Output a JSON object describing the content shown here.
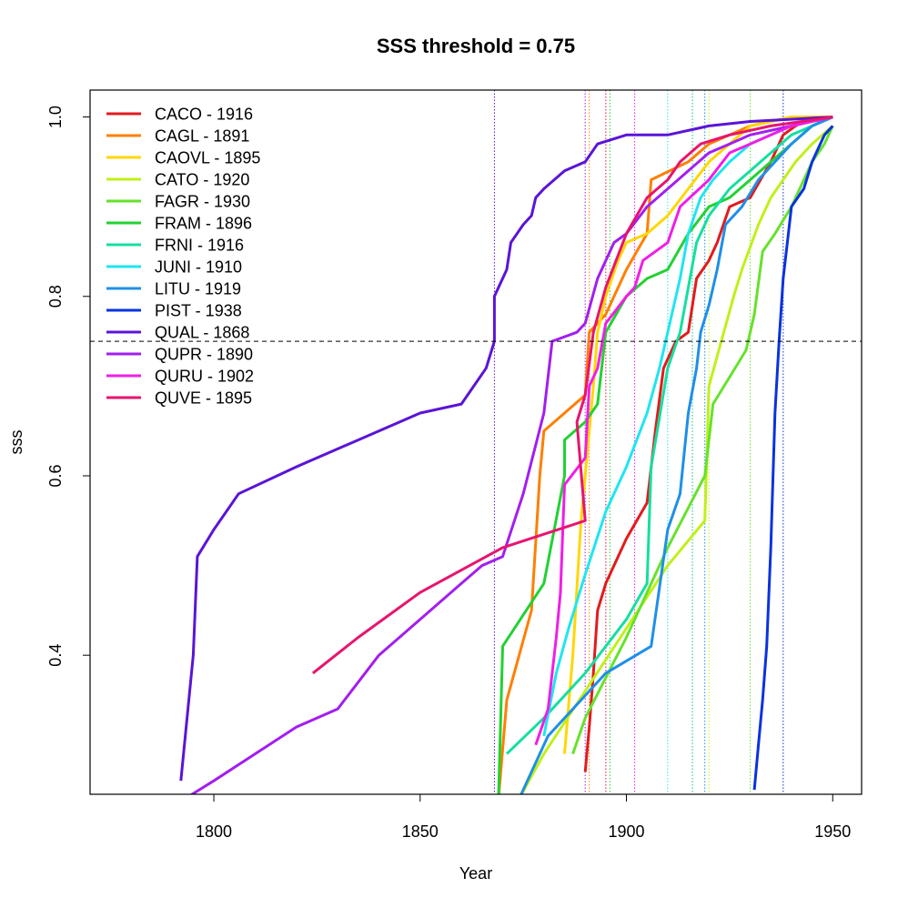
{
  "chart_data": {
    "type": "line",
    "title": "SSS threshold = 0.75",
    "xlabel": "Year",
    "ylabel": "sss",
    "xlim": [
      1770,
      1957
    ],
    "ylim": [
      0.245,
      1.03
    ],
    "xticks": [
      1800,
      1850,
      1900,
      1950
    ],
    "yticks": [
      0.4,
      0.6,
      0.8,
      1.0
    ],
    "ytick_labels": [
      "0.4",
      "0.6",
      "0.8",
      "1.0"
    ],
    "threshold": 0.75,
    "legend_position": "top-left",
    "series": [
      {
        "name": "CACO - 1916",
        "color": "#e31a1c",
        "cutoff_year": 1916,
        "points": [
          [
            1890,
            0.27
          ],
          [
            1891,
            0.32
          ],
          [
            1892,
            0.38
          ],
          [
            1893,
            0.45
          ],
          [
            1895,
            0.48
          ],
          [
            1900,
            0.53
          ],
          [
            1905,
            0.57
          ],
          [
            1907,
            0.65
          ],
          [
            1909,
            0.72
          ],
          [
            1912,
            0.75
          ],
          [
            1915,
            0.76
          ],
          [
            1917,
            0.82
          ],
          [
            1920,
            0.84
          ],
          [
            1922,
            0.86
          ],
          [
            1925,
            0.9
          ],
          [
            1930,
            0.91
          ],
          [
            1935,
            0.95
          ],
          [
            1938,
            0.98
          ],
          [
            1941,
            0.99
          ],
          [
            1945,
            1.0
          ],
          [
            1950,
            1.0
          ]
        ]
      },
      {
        "name": "CAGL - 1891",
        "color": "#ff7f00",
        "cutoff_year": 1891,
        "points": [
          [
            1869,
            0.24
          ],
          [
            1871,
            0.35
          ],
          [
            1874,
            0.4
          ],
          [
            1877,
            0.45
          ],
          [
            1879,
            0.6
          ],
          [
            1880,
            0.65
          ],
          [
            1890,
            0.69
          ],
          [
            1891,
            0.76
          ],
          [
            1895,
            0.78
          ],
          [
            1900,
            0.83
          ],
          [
            1905,
            0.87
          ],
          [
            1906,
            0.93
          ],
          [
            1915,
            0.95
          ],
          [
            1920,
            0.97
          ],
          [
            1930,
            0.99
          ],
          [
            1940,
            1.0
          ],
          [
            1950,
            1.0
          ]
        ]
      },
      {
        "name": "CAOVL - 1895",
        "color": "#ffd700",
        "cutoff_year": 1895,
        "points": [
          [
            1885,
            0.29
          ],
          [
            1887,
            0.4
          ],
          [
            1889,
            0.55
          ],
          [
            1890,
            0.6
          ],
          [
            1891,
            0.65
          ],
          [
            1892,
            0.7
          ],
          [
            1893,
            0.76
          ],
          [
            1895,
            0.8
          ],
          [
            1898,
            0.84
          ],
          [
            1900,
            0.86
          ],
          [
            1905,
            0.87
          ],
          [
            1910,
            0.89
          ],
          [
            1915,
            0.92
          ],
          [
            1920,
            0.95
          ],
          [
            1925,
            0.97
          ],
          [
            1930,
            0.99
          ],
          [
            1940,
            1.0
          ],
          [
            1950,
            1.0
          ]
        ]
      },
      {
        "name": "CATO - 1920",
        "color": "#c0f018",
        "cutoff_year": 1920,
        "points": [
          [
            1874,
            0.24
          ],
          [
            1880,
            0.29
          ],
          [
            1890,
            0.36
          ],
          [
            1900,
            0.43
          ],
          [
            1910,
            0.5
          ],
          [
            1919,
            0.55
          ],
          [
            1920,
            0.7
          ],
          [
            1923,
            0.75
          ],
          [
            1926,
            0.8
          ],
          [
            1928,
            0.83
          ],
          [
            1932,
            0.88
          ],
          [
            1935,
            0.91
          ],
          [
            1938,
            0.93
          ],
          [
            1941,
            0.95
          ],
          [
            1945,
            0.97
          ],
          [
            1950,
            0.99
          ]
        ]
      },
      {
        "name": "FAGR - 1930",
        "color": "#66e22b",
        "cutoff_year": 1930,
        "points": [
          [
            1887,
            0.29
          ],
          [
            1890,
            0.33
          ],
          [
            1900,
            0.42
          ],
          [
            1910,
            0.52
          ],
          [
            1919,
            0.6
          ],
          [
            1921,
            0.68
          ],
          [
            1925,
            0.71
          ],
          [
            1929,
            0.74
          ],
          [
            1931,
            0.78
          ],
          [
            1933,
            0.85
          ],
          [
            1936,
            0.87
          ],
          [
            1940,
            0.9
          ],
          [
            1945,
            0.95
          ],
          [
            1948,
            0.97
          ],
          [
            1950,
            0.99
          ]
        ]
      },
      {
        "name": "FRAM - 1896",
        "color": "#22d133",
        "cutoff_year": 1896,
        "points": [
          [
            1869,
            0.24
          ],
          [
            1870,
            0.41
          ],
          [
            1880,
            0.48
          ],
          [
            1885,
            0.6
          ],
          [
            1885,
            0.64
          ],
          [
            1890,
            0.66
          ],
          [
            1893,
            0.68
          ],
          [
            1895,
            0.76
          ],
          [
            1900,
            0.8
          ],
          [
            1905,
            0.82
          ],
          [
            1910,
            0.83
          ],
          [
            1915,
            0.87
          ],
          [
            1920,
            0.9
          ],
          [
            1925,
            0.91
          ],
          [
            1930,
            0.93
          ],
          [
            1935,
            0.95
          ],
          [
            1940,
            0.97
          ],
          [
            1945,
            0.99
          ],
          [
            1950,
            1.0
          ]
        ]
      },
      {
        "name": "FRNI - 1916",
        "color": "#14dfa0",
        "cutoff_year": 1916,
        "points": [
          [
            1871,
            0.29
          ],
          [
            1880,
            0.33
          ],
          [
            1890,
            0.38
          ],
          [
            1900,
            0.44
          ],
          [
            1905,
            0.48
          ],
          [
            1906,
            0.61
          ],
          [
            1910,
            0.72
          ],
          [
            1913,
            0.76
          ],
          [
            1917,
            0.86
          ],
          [
            1920,
            0.89
          ],
          [
            1925,
            0.92
          ],
          [
            1930,
            0.94
          ],
          [
            1935,
            0.96
          ],
          [
            1940,
            0.98
          ],
          [
            1950,
            1.0
          ]
        ]
      },
      {
        "name": "JUNI - 1910",
        "color": "#1ee6f0",
        "cutoff_year": 1910,
        "points": [
          [
            1880,
            0.31
          ],
          [
            1883,
            0.38
          ],
          [
            1886,
            0.43
          ],
          [
            1890,
            0.49
          ],
          [
            1895,
            0.56
          ],
          [
            1900,
            0.61
          ],
          [
            1905,
            0.67
          ],
          [
            1908,
            0.72
          ],
          [
            1910,
            0.76
          ],
          [
            1913,
            0.82
          ],
          [
            1915,
            0.87
          ],
          [
            1918,
            0.91
          ],
          [
            1921,
            0.93
          ],
          [
            1925,
            0.95
          ],
          [
            1930,
            0.97
          ],
          [
            1935,
            0.98
          ],
          [
            1940,
            0.99
          ],
          [
            1950,
            1.0
          ]
        ]
      },
      {
        "name": "LITU - 1919",
        "color": "#1e8fe8",
        "cutoff_year": 1919,
        "points": [
          [
            1874,
            0.24
          ],
          [
            1880,
            0.3
          ],
          [
            1881,
            0.31
          ],
          [
            1887,
            0.34
          ],
          [
            1895,
            0.38
          ],
          [
            1906,
            0.41
          ],
          [
            1910,
            0.54
          ],
          [
            1913,
            0.58
          ],
          [
            1915,
            0.67
          ],
          [
            1917,
            0.72
          ],
          [
            1918,
            0.76
          ],
          [
            1920,
            0.79
          ],
          [
            1922,
            0.83
          ],
          [
            1924,
            0.88
          ],
          [
            1928,
            0.9
          ],
          [
            1932,
            0.93
          ],
          [
            1936,
            0.95
          ],
          [
            1940,
            0.97
          ],
          [
            1945,
            0.99
          ],
          [
            1950,
            1.0
          ]
        ]
      },
      {
        "name": "PIST - 1938",
        "color": "#0a32e0",
        "cutoff_year": 1938,
        "points": [
          [
            1931,
            0.25
          ],
          [
            1932,
            0.3
          ],
          [
            1933,
            0.35
          ],
          [
            1934,
            0.41
          ],
          [
            1935,
            0.52
          ],
          [
            1936,
            0.67
          ],
          [
            1937,
            0.75
          ],
          [
            1938,
            0.82
          ],
          [
            1939,
            0.86
          ],
          [
            1940,
            0.9
          ],
          [
            1943,
            0.92
          ],
          [
            1945,
            0.95
          ],
          [
            1948,
            0.98
          ],
          [
            1950,
            0.99
          ]
        ]
      },
      {
        "name": "QUAL - 1868",
        "color": "#5a14d8",
        "cutoff_year": 1868,
        "points": [
          [
            1792,
            0.26
          ],
          [
            1795,
            0.4
          ],
          [
            1796,
            0.51
          ],
          [
            1800,
            0.54
          ],
          [
            1806,
            0.58
          ],
          [
            1820,
            0.61
          ],
          [
            1830,
            0.63
          ],
          [
            1840,
            0.65
          ],
          [
            1850,
            0.67
          ],
          [
            1860,
            0.68
          ],
          [
            1866,
            0.72
          ],
          [
            1868,
            0.75
          ],
          [
            1868,
            0.8
          ],
          [
            1871,
            0.83
          ],
          [
            1872,
            0.86
          ],
          [
            1875,
            0.88
          ],
          [
            1877,
            0.89
          ],
          [
            1878,
            0.91
          ],
          [
            1880,
            0.92
          ],
          [
            1885,
            0.94
          ],
          [
            1890,
            0.95
          ],
          [
            1893,
            0.97
          ],
          [
            1900,
            0.98
          ],
          [
            1910,
            0.98
          ],
          [
            1920,
            0.99
          ],
          [
            1930,
            0.995
          ],
          [
            1950,
            1.0
          ]
        ]
      },
      {
        "name": "QUPR - 1890",
        "color": "#a21ef0",
        "cutoff_year": 1890,
        "points": [
          [
            1793,
            0.24
          ],
          [
            1800,
            0.26
          ],
          [
            1810,
            0.29
          ],
          [
            1820,
            0.32
          ],
          [
            1830,
            0.34
          ],
          [
            1840,
            0.4
          ],
          [
            1850,
            0.44
          ],
          [
            1860,
            0.48
          ],
          [
            1865,
            0.5
          ],
          [
            1870,
            0.51
          ],
          [
            1875,
            0.58
          ],
          [
            1880,
            0.67
          ],
          [
            1882,
            0.75
          ],
          [
            1888,
            0.76
          ],
          [
            1890,
            0.77
          ],
          [
            1893,
            0.82
          ],
          [
            1897,
            0.86
          ],
          [
            1900,
            0.87
          ],
          [
            1905,
            0.9
          ],
          [
            1910,
            0.92
          ],
          [
            1915,
            0.94
          ],
          [
            1920,
            0.96
          ],
          [
            1925,
            0.97
          ],
          [
            1930,
            0.98
          ],
          [
            1940,
            0.99
          ],
          [
            1950,
            1.0
          ]
        ]
      },
      {
        "name": "QURU - 1902",
        "color": "#f01ee6",
        "cutoff_year": 1902,
        "points": [
          [
            1878,
            0.3
          ],
          [
            1881,
            0.34
          ],
          [
            1883,
            0.42
          ],
          [
            1884,
            0.47
          ],
          [
            1885,
            0.59
          ],
          [
            1890,
            0.62
          ],
          [
            1891,
            0.7
          ],
          [
            1893,
            0.72
          ],
          [
            1895,
            0.77
          ],
          [
            1900,
            0.8
          ],
          [
            1902,
            0.81
          ],
          [
            1904,
            0.84
          ],
          [
            1910,
            0.86
          ],
          [
            1913,
            0.9
          ],
          [
            1920,
            0.93
          ],
          [
            1925,
            0.96
          ],
          [
            1930,
            0.97
          ],
          [
            1940,
            0.99
          ],
          [
            1950,
            1.0
          ]
        ]
      },
      {
        "name": "QUVE - 1895",
        "color": "#e8146e",
        "cutoff_year": 1895,
        "points": [
          [
            1824,
            0.38
          ],
          [
            1835,
            0.42
          ],
          [
            1850,
            0.47
          ],
          [
            1870,
            0.52
          ],
          [
            1890,
            0.55
          ],
          [
            1888,
            0.66
          ],
          [
            1890,
            0.69
          ],
          [
            1892,
            0.76
          ],
          [
            1895,
            0.81
          ],
          [
            1900,
            0.87
          ],
          [
            1905,
            0.91
          ],
          [
            1910,
            0.93
          ],
          [
            1913,
            0.95
          ],
          [
            1918,
            0.97
          ],
          [
            1925,
            0.98
          ],
          [
            1935,
            0.99
          ],
          [
            1950,
            1.0
          ]
        ]
      }
    ]
  }
}
